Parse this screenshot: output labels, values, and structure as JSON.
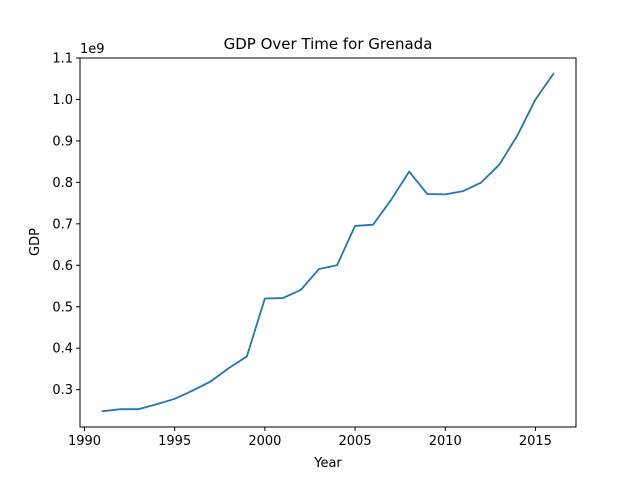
{
  "chart_data": {
    "type": "line",
    "title": "GDP Over Time for Grenada",
    "xlabel": "Year",
    "ylabel": "GDP",
    "y_scale_label": "1e9",
    "xlim": [
      1989.75,
      2017.25
    ],
    "ylim": [
      210000000.0,
      1100000000.0
    ],
    "x_ticks": [
      1990,
      1995,
      2000,
      2005,
      2010,
      2015
    ],
    "x_tick_labels": [
      "1990",
      "1995",
      "2000",
      "2005",
      "2010",
      "2015"
    ],
    "y_ticks": [
      300000000.0,
      400000000.0,
      500000000.0,
      600000000.0,
      700000000.0,
      800000000.0,
      900000000.0,
      1000000000.0,
      1100000000.0
    ],
    "y_tick_labels": [
      "0.3",
      "0.4",
      "0.5",
      "0.6",
      "0.7",
      "0.8",
      "0.9",
      "1.0",
      "1.1"
    ],
    "grid": false,
    "line_color": "#1f77b4",
    "series": [
      {
        "x": [
          1991,
          1992,
          1993,
          1994,
          1995,
          1996,
          1997,
          1998,
          1999,
          2000,
          2001,
          2002,
          2003,
          2004,
          2005,
          2006,
          2007,
          2008,
          2009,
          2010,
          2011,
          2012,
          2013,
          2014,
          2015,
          2016
        ],
        "values": [
          248000000,
          253000000,
          253000000,
          265000000,
          278000000,
          298000000,
          320000000,
          352000000,
          380000000,
          520000000,
          521000000,
          541000000,
          591000000,
          600000000,
          695000000,
          698000000,
          758000000,
          826000000,
          772000000,
          771000000,
          779000000,
          800000000,
          843000000,
          913000000,
          1000000000,
          1062000000
        ]
      }
    ]
  }
}
